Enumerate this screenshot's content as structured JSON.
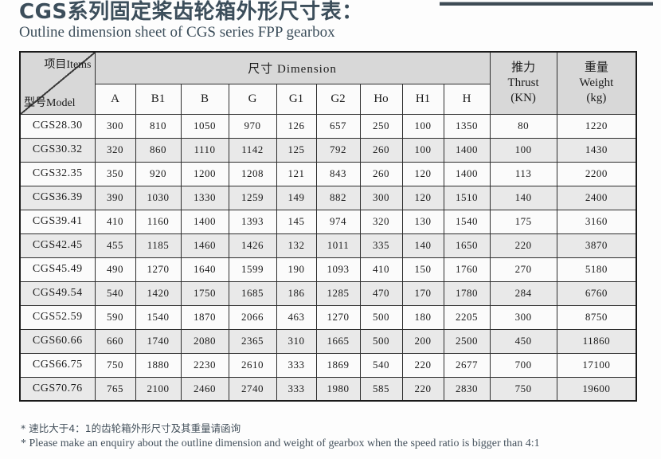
{
  "page": {
    "title": "CGS系列固定桨齿轮箱外形尺寸表：",
    "subtitle": "Outline dimension sheet of CGS series FPP gearbox",
    "accent_color": "#3c4e5b"
  },
  "table": {
    "corner": {
      "top_label": "项目Items",
      "bottom_label": "型号Model"
    },
    "dimension_header": "尺寸  Dimension",
    "dim_columns": [
      "A",
      "B1",
      "B",
      "G",
      "G1",
      "G2",
      "Ho",
      "H1",
      "H"
    ],
    "thrust_header": "推力\nThrust\n(KN)",
    "weight_header": "重量\nWeight\n(kg)",
    "header_bg": "#d8d8d8",
    "row_alt_bg": "#e9e9e9",
    "rows": [
      {
        "model": "CGS28.30",
        "dims": [
          "300",
          "810",
          "1050",
          "970",
          "126",
          "657",
          "250",
          "100",
          "1350"
        ],
        "thrust": "80",
        "weight": "1220"
      },
      {
        "model": "CGS30.32",
        "dims": [
          "320",
          "860",
          "1110",
          "1142",
          "125",
          "792",
          "260",
          "100",
          "1400"
        ],
        "thrust": "100",
        "weight": "1430"
      },
      {
        "model": "CGS32.35",
        "dims": [
          "350",
          "920",
          "1200",
          "1208",
          "121",
          "843",
          "260",
          "120",
          "1400"
        ],
        "thrust": "113",
        "weight": "2200"
      },
      {
        "model": "CGS36.39",
        "dims": [
          "390",
          "1030",
          "1330",
          "1259",
          "149",
          "882",
          "300",
          "120",
          "1510"
        ],
        "thrust": "140",
        "weight": "2400"
      },
      {
        "model": "CGS39.41",
        "dims": [
          "410",
          "1160",
          "1400",
          "1393",
          "145",
          "974",
          "320",
          "130",
          "1540"
        ],
        "thrust": "175",
        "weight": "3160"
      },
      {
        "model": "CGS42.45",
        "dims": [
          "455",
          "1185",
          "1460",
          "1426",
          "132",
          "1011",
          "335",
          "140",
          "1650"
        ],
        "thrust": "220",
        "weight": "3870"
      },
      {
        "model": "CGS45.49",
        "dims": [
          "490",
          "1270",
          "1640",
          "1599",
          "190",
          "1093",
          "410",
          "150",
          "1760"
        ],
        "thrust": "270",
        "weight": "5180"
      },
      {
        "model": "CGS49.54",
        "dims": [
          "540",
          "1420",
          "1750",
          "1685",
          "186",
          "1285",
          "470",
          "170",
          "1780"
        ],
        "thrust": "284",
        "weight": "6760"
      },
      {
        "model": "CGS52.59",
        "dims": [
          "590",
          "1540",
          "1870",
          "2066",
          "463",
          "1270",
          "500",
          "180",
          "2205"
        ],
        "thrust": "300",
        "weight": "8750"
      },
      {
        "model": "CGS60.66",
        "dims": [
          "660",
          "1740",
          "2080",
          "2365",
          "310",
          "1665",
          "500",
          "200",
          "2500"
        ],
        "thrust": "450",
        "weight": "11860"
      },
      {
        "model": "CGS66.75",
        "dims": [
          "750",
          "1880",
          "2230",
          "2610",
          "333",
          "1869",
          "540",
          "220",
          "2677"
        ],
        "thrust": "700",
        "weight": "17100"
      },
      {
        "model": "CGS70.76",
        "dims": [
          "765",
          "2100",
          "2460",
          "2740",
          "333",
          "1980",
          "585",
          "220",
          "2830"
        ],
        "thrust": "750",
        "weight": "19600"
      }
    ]
  },
  "notes": {
    "zh": "* 速比大于4：1的齿轮箱外形尺寸及其重量请函询",
    "en": "* Please make an enquiry about the outline dimension and weight of gearbox when the speed ratio is bigger than 4:1"
  }
}
